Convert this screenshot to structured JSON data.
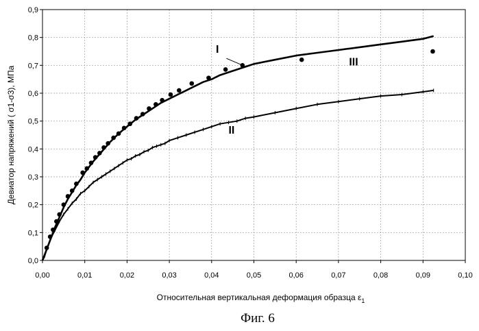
{
  "chart_data": {
    "type": "scatter",
    "xlabel": "Относительная вертикальная деформация образца ε",
    "xlabel_sub": "1",
    "ylabel": "Девиатор напряжений ( σ1-σ3), МПа",
    "xlim": [
      0,
      0.1
    ],
    "ylim": [
      0,
      0.9
    ],
    "x_ticks": [
      "0,00",
      "0,01",
      "0,02",
      "0,03",
      "0,04",
      "0,05",
      "0,06",
      "0,07",
      "0,08",
      "0,09",
      "0,10"
    ],
    "y_ticks": [
      "0,0",
      "0,1",
      "0,2",
      "0,3",
      "0,4",
      "0,5",
      "0,6",
      "0,7",
      "0,8",
      "0,9"
    ],
    "grid": "dashed",
    "series": [
      {
        "name": "I",
        "style": "points",
        "x": [
          0.001,
          0.0018,
          0.0025,
          0.0033,
          0.004,
          0.005,
          0.006,
          0.007,
          0.008,
          0.0095,
          0.0105,
          0.0115,
          0.0125,
          0.0135,
          0.0145,
          0.0155,
          0.0168,
          0.018,
          0.0193,
          0.0207,
          0.0222,
          0.0237,
          0.0252,
          0.0268,
          0.0283,
          0.0303,
          0.0323,
          0.0353,
          0.0393,
          0.0433,
          0.0473,
          0.0613,
          0.0923
        ],
        "y": [
          0.045,
          0.085,
          0.11,
          0.14,
          0.165,
          0.2,
          0.23,
          0.25,
          0.275,
          0.315,
          0.33,
          0.35,
          0.37,
          0.385,
          0.405,
          0.42,
          0.44,
          0.455,
          0.475,
          0.49,
          0.51,
          0.525,
          0.545,
          0.56,
          0.575,
          0.595,
          0.61,
          0.635,
          0.655,
          0.685,
          0.7,
          0.72,
          0.75
        ]
      },
      {
        "name": "II",
        "style": "marked-line",
        "x": [
          0,
          0.0005,
          0.001,
          0.002,
          0.003,
          0.004,
          0.005,
          0.006,
          0.007,
          0.008,
          0.009,
          0.01,
          0.011,
          0.012,
          0.013,
          0.014,
          0.015,
          0.016,
          0.017,
          0.018,
          0.019,
          0.02,
          0.021,
          0.022,
          0.023,
          0.024,
          0.025,
          0.026,
          0.027,
          0.028,
          0.029,
          0.03,
          0.032,
          0.034,
          0.036,
          0.038,
          0.04,
          0.042,
          0.044,
          0.046,
          0.048,
          0.05,
          0.055,
          0.06,
          0.065,
          0.07,
          0.075,
          0.08,
          0.085,
          0.09,
          0.0925
        ],
        "y": [
          0,
          0.015,
          0.04,
          0.08,
          0.11,
          0.14,
          0.165,
          0.185,
          0.205,
          0.22,
          0.24,
          0.25,
          0.265,
          0.28,
          0.29,
          0.3,
          0.31,
          0.32,
          0.33,
          0.34,
          0.35,
          0.36,
          0.365,
          0.375,
          0.38,
          0.39,
          0.395,
          0.405,
          0.41,
          0.415,
          0.42,
          0.43,
          0.44,
          0.45,
          0.46,
          0.47,
          0.48,
          0.49,
          0.495,
          0.5,
          0.51,
          0.515,
          0.53,
          0.545,
          0.56,
          0.57,
          0.58,
          0.59,
          0.595,
          0.605,
          0.61
        ]
      },
      {
        "name": "III",
        "style": "line",
        "x": [
          0,
          0.001,
          0.002,
          0.003,
          0.004,
          0.005,
          0.006,
          0.007,
          0.008,
          0.009,
          0.01,
          0.012,
          0.014,
          0.016,
          0.018,
          0.02,
          0.022,
          0.024,
          0.026,
          0.028,
          0.03,
          0.032,
          0.034,
          0.036,
          0.038,
          0.04,
          0.042,
          0.045,
          0.048,
          0.05,
          0.055,
          0.06,
          0.065,
          0.07,
          0.075,
          0.08,
          0.085,
          0.09,
          0.0925
        ],
        "y": [
          0,
          0.04,
          0.08,
          0.12,
          0.155,
          0.19,
          0.22,
          0.245,
          0.27,
          0.29,
          0.315,
          0.355,
          0.39,
          0.425,
          0.455,
          0.48,
          0.505,
          0.525,
          0.545,
          0.565,
          0.58,
          0.595,
          0.61,
          0.625,
          0.64,
          0.65,
          0.665,
          0.68,
          0.695,
          0.705,
          0.72,
          0.735,
          0.745,
          0.755,
          0.765,
          0.775,
          0.785,
          0.795,
          0.805
        ]
      }
    ],
    "annotations": {
      "curve_labels": [
        {
          "text": "I",
          "x": 0.041,
          "y": 0.745
        },
        {
          "text": "II",
          "x": 0.044,
          "y": 0.455
        },
        {
          "text": "III",
          "x": 0.0725,
          "y": 0.7
        }
      ],
      "pointer": {
        "from": [
          0.0435,
          0.725
        ],
        "to": [
          0.0472,
          0.701
        ]
      }
    },
    "colors": {
      "series": "#000000",
      "grid": "#999999",
      "frame": "#000000"
    }
  },
  "figure_caption": "Фиг. 6"
}
